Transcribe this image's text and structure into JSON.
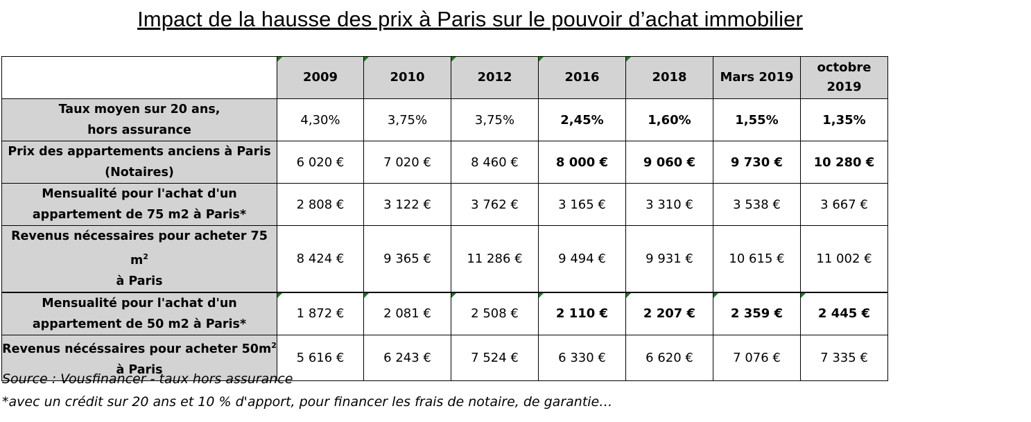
{
  "title": "Impact de la hausse des prix à Paris sur le pouvoir d’achat immobilier",
  "headers": [
    "2009",
    "2010",
    "2012",
    "2016",
    "2018",
    "Mars 2019",
    "octobre 2019"
  ],
  "rows": [
    {
      "label": "Taux moyen sur 20 ans,",
      "label2": "hors assurance",
      "values": [
        "4,30%",
        "3,75%",
        "3,75%",
        "2,45%",
        "1,60%",
        "1,55%",
        "1,35%"
      ]
    },
    {
      "label": "Prix des appartements anciens à Paris",
      "label2": "(Notaires)",
      "values": [
        "6 020 €",
        "7 020 €",
        "8 460 €",
        "8 000 €",
        "9 060 €",
        "9 730 €",
        "10 280 €"
      ]
    },
    {
      "label": "Mensualité pour l'achat d'un",
      "label2": "appartement de 75 m2 à Paris*",
      "values": [
        "2 808 €",
        "3 122 €",
        "3 762 €",
        "3 165 €",
        "3 310 €",
        "3 538 €",
        "3 667 €"
      ]
    },
    {
      "label": "Revenus nécessaires pour acheter 75 m",
      "sup": "2",
      "label2": "à Paris",
      "values": [
        "8 424 €",
        "9 365 €",
        "11 286 €",
        "9 494 €",
        "9 931 €",
        "10 615 €",
        "11 002 €"
      ]
    },
    {
      "label": "Mensualité pour l'achat d'un",
      "label2": "appartement de 50 m2 à Paris*",
      "values": [
        "1 872 €",
        "2 081 €",
        "2 508 €",
        "2 110 €",
        "2 207 €",
        "2 359 €",
        "2 445 €"
      ]
    },
    {
      "label": "Revenus nécéssaires pour acheter 50m",
      "sup": "2",
      "label2": "à Paris",
      "values": [
        "5 616 €",
        "6 243 €",
        "7 524 €",
        "6 330 €",
        "6 620 €",
        "7 076 €",
        "7 335 €"
      ]
    }
  ],
  "notes": {
    "source": "Source : Vousfinancer - taux hors assurance",
    "footnote": "*avec un crédit sur 20 ans et 10 % d'apport, pour financer les frais de notaire, de garantie…"
  },
  "colors": {
    "header_bg": "#d3d3d3",
    "cell_marker": "#1f7a1f"
  }
}
